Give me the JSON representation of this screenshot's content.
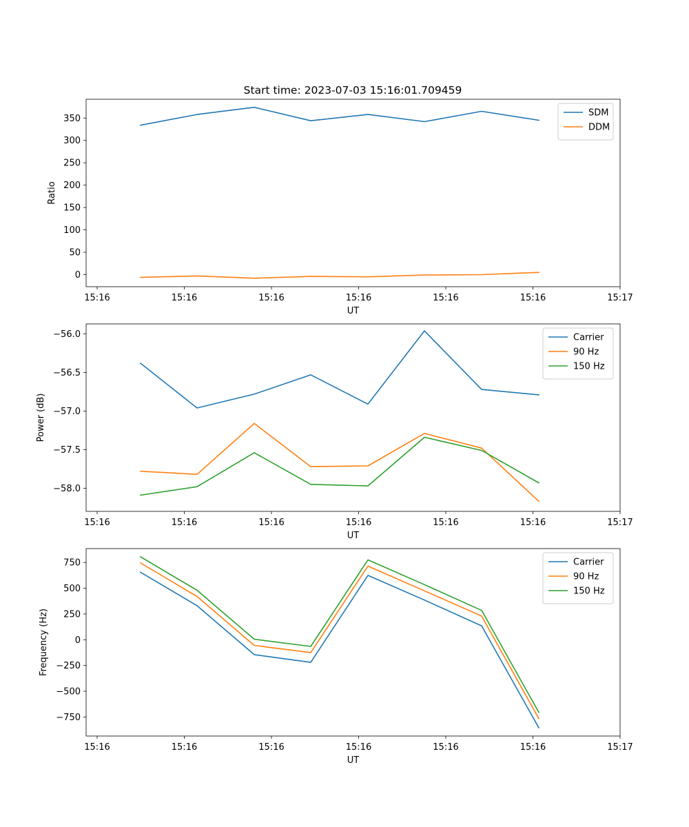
{
  "chart_data": [
    {
      "type": "line",
      "title": "Start time: 2023-07-03 15:16:01.709459",
      "xlabel": "UT",
      "ylabel": "Ratio",
      "x_tick_labels": [
        "15:16",
        "15:16",
        "15:16",
        "15:16",
        "15:16",
        "15:16",
        "15:17"
      ],
      "ylim": [
        -27,
        392
      ],
      "y_ticks": [
        0,
        50,
        100,
        150,
        200,
        250,
        300,
        350
      ],
      "legend": "top-right",
      "grid": false,
      "series": [
        {
          "name": "SDM",
          "color": "#1f77b4",
          "values": [
            334,
            358,
            374,
            344,
            358,
            342,
            365,
            345
          ]
        },
        {
          "name": "DDM",
          "color": "#ff7f0e",
          "values": [
            -6,
            -3,
            -8,
            -4,
            -5,
            -1,
            0,
            5
          ]
        }
      ]
    },
    {
      "type": "line",
      "title": "",
      "xlabel": "UT",
      "ylabel": "Power (dB)",
      "x_tick_labels": [
        "15:16",
        "15:16",
        "15:16",
        "15:16",
        "15:16",
        "15:16",
        "15:17"
      ],
      "ylim": [
        -58.3,
        -55.87
      ],
      "y_ticks": [
        -58.0,
        -57.5,
        -57.0,
        -56.5,
        -56.0
      ],
      "y_tick_labels": [
        "−58.0",
        "−57.5",
        "−57.0",
        "−56.5",
        "−56.0"
      ],
      "legend": "top-right",
      "grid": false,
      "series": [
        {
          "name": "Carrier",
          "color": "#1f77b4",
          "values": [
            -56.38,
            -56.96,
            -56.78,
            -56.53,
            -56.91,
            -55.96,
            -56.72,
            -56.79
          ]
        },
        {
          "name": "90 Hz",
          "color": "#ff7f0e",
          "values": [
            -57.78,
            -57.82,
            -57.16,
            -57.72,
            -57.71,
            -57.29,
            -57.48,
            -58.17
          ]
        },
        {
          "name": "150 Hz",
          "color": "#2ca02c",
          "values": [
            -58.09,
            -57.98,
            -57.54,
            -57.95,
            -57.97,
            -57.34,
            -57.51,
            -57.93
          ]
        }
      ]
    },
    {
      "type": "line",
      "title": "",
      "xlabel": "UT",
      "ylabel": "Frequency (Hz)",
      "x_tick_labels": [
        "15:16",
        "15:16",
        "15:16",
        "15:16",
        "15:16",
        "15:16",
        "15:17"
      ],
      "ylim": [
        -935,
        885
      ],
      "y_ticks": [
        -750,
        -500,
        -250,
        0,
        250,
        500,
        750
      ],
      "y_tick_labels": [
        "−750",
        "−500",
        "−250",
        "0",
        "250",
        "500",
        "750"
      ],
      "legend": "top-right",
      "grid": false,
      "series": [
        {
          "name": "Carrier",
          "color": "#1f77b4",
          "values": [
            655,
            330,
            -145,
            -220,
            625,
            385,
            135,
            -855
          ]
        },
        {
          "name": "90 Hz",
          "color": "#ff7f0e",
          "values": [
            745,
            420,
            -55,
            -125,
            715,
            475,
            230,
            -765
          ]
        },
        {
          "name": "150 Hz",
          "color": "#2ca02c",
          "values": [
            805,
            480,
            5,
            -65,
            775,
            535,
            285,
            -705
          ]
        }
      ]
    }
  ]
}
